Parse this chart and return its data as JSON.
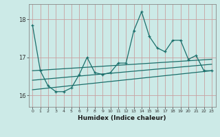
{
  "xlabel": "Humidex (Indice chaleur)",
  "bg_color": "#cceae7",
  "line_color": "#1a6e6a",
  "grid_color": "#c8a0a0",
  "main_x": [
    0,
    1,
    2,
    3,
    4,
    5,
    6,
    7,
    8,
    9,
    10,
    11,
    12,
    13,
    14,
    15,
    16,
    17,
    18,
    19,
    20,
    21,
    22,
    23
  ],
  "main_y": [
    17.85,
    16.65,
    16.25,
    16.1,
    16.1,
    16.2,
    16.55,
    17.0,
    16.6,
    16.55,
    16.6,
    16.85,
    16.85,
    17.7,
    18.2,
    17.55,
    17.25,
    17.15,
    17.45,
    17.45,
    16.95,
    17.05,
    16.65,
    16.65
  ],
  "trend1_x": [
    0,
    23
  ],
  "trend1_y": [
    16.65,
    16.95
  ],
  "trend2_x": [
    0,
    23
  ],
  "trend2_y": [
    16.4,
    16.82
  ],
  "trend3_x": [
    0,
    23
  ],
  "trend3_y": [
    16.15,
    16.65
  ],
  "ylim": [
    15.7,
    18.4
  ],
  "yticks": [
    16,
    17,
    18
  ],
  "xlim": [
    -0.5,
    23.5
  ],
  "xticks": [
    0,
    1,
    2,
    3,
    4,
    5,
    6,
    7,
    8,
    9,
    10,
    11,
    12,
    13,
    14,
    15,
    16,
    17,
    18,
    19,
    20,
    21,
    22,
    23
  ]
}
